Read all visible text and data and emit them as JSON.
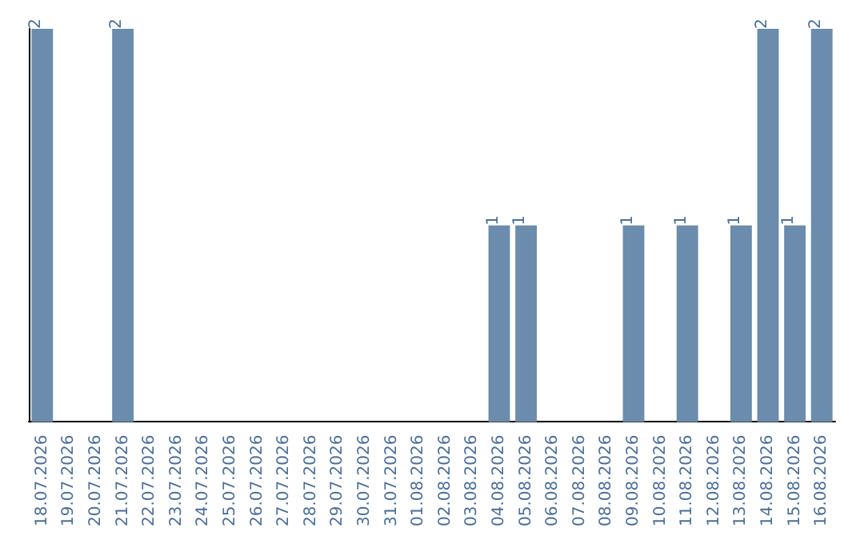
{
  "chart_data": {
    "type": "bar",
    "categories": [
      "18.07.2026",
      "19.07.2026",
      "20.07.2026",
      "21.07.2026",
      "22.07.2026",
      "23.07.2026",
      "24.07.2026",
      "25.07.2026",
      "26.07.2026",
      "27.07.2026",
      "28.07.2026",
      "29.07.2026",
      "30.07.2026",
      "31.07.2026",
      "01.08.2026",
      "02.08.2026",
      "03.08.2026",
      "04.08.2026",
      "05.08.2026",
      "06.08.2026",
      "07.08.2026",
      "08.08.2026",
      "09.08.2026",
      "10.08.2026",
      "11.08.2026",
      "12.08.2026",
      "13.08.2026",
      "14.08.2026",
      "15.08.2026",
      "16.08.2026"
    ],
    "values": [
      2,
      0,
      0,
      2,
      0,
      0,
      0,
      0,
      0,
      0,
      0,
      0,
      0,
      0,
      0,
      0,
      0,
      1,
      1,
      0,
      0,
      0,
      1,
      0,
      1,
      0,
      1,
      2,
      1,
      2
    ],
    "value_labels": [
      "2",
      null,
      null,
      "2",
      null,
      null,
      null,
      null,
      null,
      null,
      null,
      null,
      null,
      null,
      null,
      null,
      null,
      "1",
      "1",
      null,
      null,
      null,
      "1",
      null,
      "1",
      null,
      "1",
      "2",
      "1",
      "2"
    ],
    "color": "#6b8cad",
    "grid": false,
    "tick_labels": "x"
  }
}
